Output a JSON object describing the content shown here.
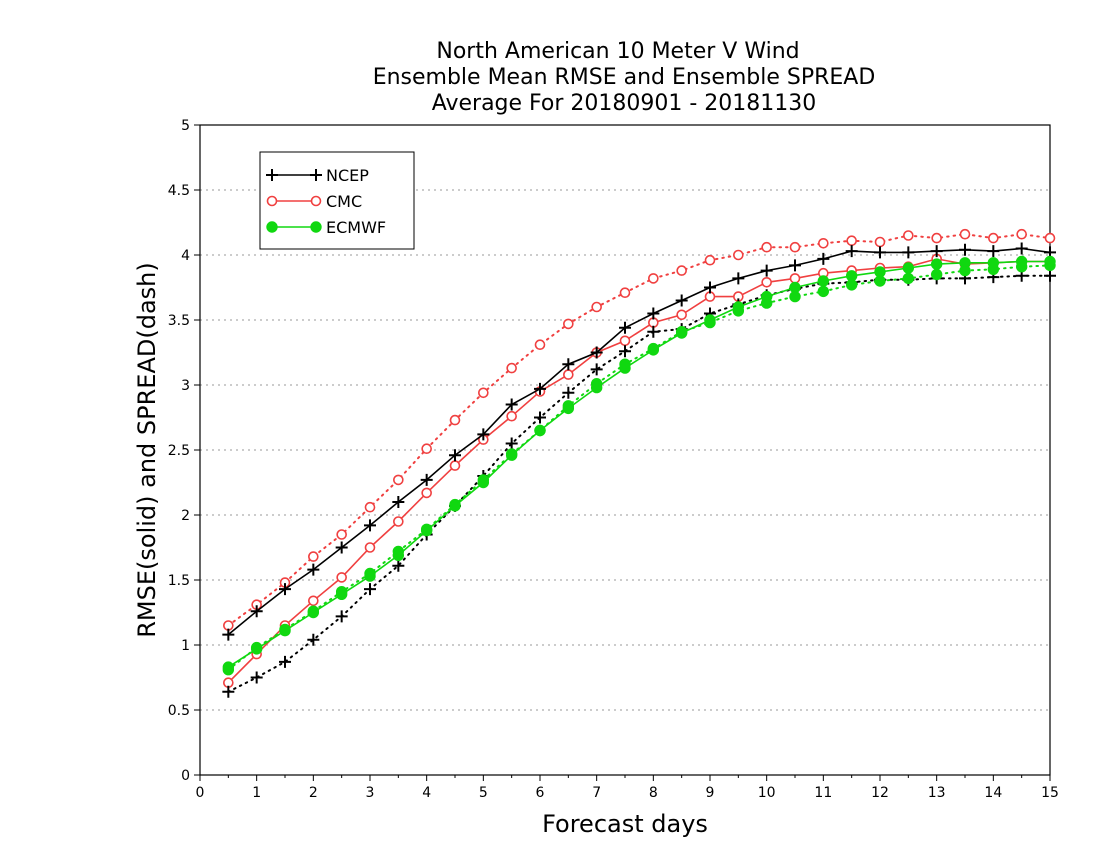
{
  "chart_data": {
    "type": "line",
    "title": [
      "North American 10 Meter V Wind",
      "Ensemble Mean RMSE and Ensemble SPREAD",
      "Average For 20180901 - 20181130"
    ],
    "xlabel": "Forecast days",
    "ylabel": "RMSE(solid) and SPREAD(dash)",
    "xlim": [
      0,
      15
    ],
    "ylim": [
      0,
      5
    ],
    "xticks": [
      "0",
      "1",
      "2",
      "3",
      "4",
      "5",
      "6",
      "7",
      "8",
      "9",
      "10",
      "11",
      "12",
      "13",
      "14",
      "15"
    ],
    "yticks": [
      "0",
      "0.5",
      "1",
      "1.5",
      "2",
      "2.5",
      "3",
      "3.5",
      "4",
      "4.5",
      "5"
    ],
    "grid": "dotted horizontal",
    "legend_position": "top-left",
    "x": [
      0.5,
      1,
      1.5,
      2,
      2.5,
      3,
      3.5,
      4,
      4.5,
      5,
      5.5,
      6,
      6.5,
      7,
      7.5,
      8,
      8.5,
      9,
      9.5,
      10,
      10.5,
      11,
      11.5,
      12,
      12.5,
      13,
      13.5,
      14,
      14.5,
      15
    ],
    "series": [
      {
        "name": "NCEP",
        "color": "#000000",
        "marker": "plus",
        "rmse": [
          1.08,
          1.26,
          1.43,
          1.58,
          1.75,
          1.92,
          2.1,
          2.27,
          2.46,
          2.62,
          2.85,
          2.97,
          3.16,
          3.25,
          3.44,
          3.55,
          3.65,
          3.75,
          3.82,
          3.88,
          3.92,
          3.97,
          4.03,
          4.02,
          4.02,
          4.03,
          4.04,
          4.03,
          4.05,
          4.02
        ],
        "spread": [
          0.64,
          0.75,
          0.87,
          1.04,
          1.22,
          1.43,
          1.61,
          1.85,
          2.07,
          2.3,
          2.55,
          2.75,
          2.94,
          3.12,
          3.26,
          3.41,
          3.43,
          3.55,
          3.62,
          3.69,
          3.74,
          3.78,
          3.79,
          3.81,
          3.81,
          3.82,
          3.82,
          3.83,
          3.84,
          3.84
        ]
      },
      {
        "name": "CMC",
        "color": "#f04040",
        "marker": "circle-open",
        "rmse": [
          0.71,
          0.93,
          1.15,
          1.34,
          1.52,
          1.75,
          1.95,
          2.17,
          2.38,
          2.58,
          2.76,
          2.95,
          3.08,
          3.25,
          3.34,
          3.48,
          3.54,
          3.68,
          3.68,
          3.79,
          3.82,
          3.86,
          3.88,
          3.9,
          3.91,
          3.97,
          3.93,
          3.94,
          3.95,
          3.95
        ],
        "spread": [
          1.15,
          1.31,
          1.48,
          1.68,
          1.85,
          2.06,
          2.27,
          2.51,
          2.73,
          2.94,
          3.13,
          3.31,
          3.47,
          3.6,
          3.71,
          3.82,
          3.88,
          3.96,
          4.0,
          4.06,
          4.06,
          4.09,
          4.11,
          4.1,
          4.15,
          4.13,
          4.16,
          4.13,
          4.16,
          4.13
        ]
      },
      {
        "name": "ECMWF",
        "color": "#10d810",
        "marker": "circle-filled",
        "rmse": [
          0.83,
          0.97,
          1.11,
          1.25,
          1.39,
          1.53,
          1.69,
          1.88,
          2.07,
          2.25,
          2.46,
          2.65,
          2.82,
          2.98,
          3.13,
          3.27,
          3.4,
          3.5,
          3.6,
          3.68,
          3.75,
          3.8,
          3.84,
          3.87,
          3.9,
          3.93,
          3.94,
          3.94,
          3.95,
          3.95
        ],
        "spread": [
          0.81,
          0.98,
          1.12,
          1.26,
          1.41,
          1.55,
          1.72,
          1.89,
          2.08,
          2.27,
          2.47,
          2.65,
          2.84,
          3.01,
          3.16,
          3.28,
          3.41,
          3.48,
          3.57,
          3.63,
          3.68,
          3.72,
          3.77,
          3.8,
          3.82,
          3.85,
          3.88,
          3.89,
          3.91,
          3.92
        ]
      }
    ]
  }
}
